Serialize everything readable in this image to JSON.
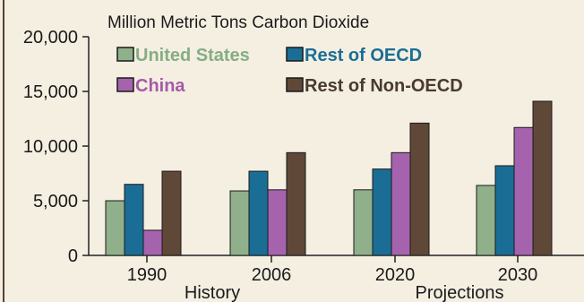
{
  "chart_data": {
    "type": "bar",
    "unit_label": "Million Metric Tons Carbon Dioxide",
    "categories": [
      "1990",
      "2006",
      "2020",
      "2030"
    ],
    "groups": [
      "History",
      "Projections"
    ],
    "ylim": [
      0,
      20000
    ],
    "yticks": [
      0,
      5000,
      10000,
      15000,
      20000
    ],
    "ytick_labels": [
      "0",
      "5,000",
      "10,000",
      "15,000",
      "20,000"
    ],
    "series": [
      {
        "name": "United States",
        "color": "#8fb08a",
        "legend_text_color": "#86ad86",
        "values": [
          5000,
          5900,
          6000,
          6400
        ]
      },
      {
        "name": "Rest of OECD",
        "color": "#1a6e96",
        "legend_text_color": "#1a6e96",
        "values": [
          6500,
          7700,
          7900,
          8200
        ]
      },
      {
        "name": "China",
        "color": "#a563ae",
        "legend_text_color": "#a55aa8",
        "values": [
          2300,
          6000,
          9400,
          11700
        ]
      },
      {
        "name": "Rest of Non-OECD",
        "color": "#604838",
        "legend_text_color": "#4a3a30",
        "values": [
          7700,
          9400,
          12100,
          14100
        ]
      }
    ],
    "grid": false,
    "legend_position": "top-left"
  }
}
